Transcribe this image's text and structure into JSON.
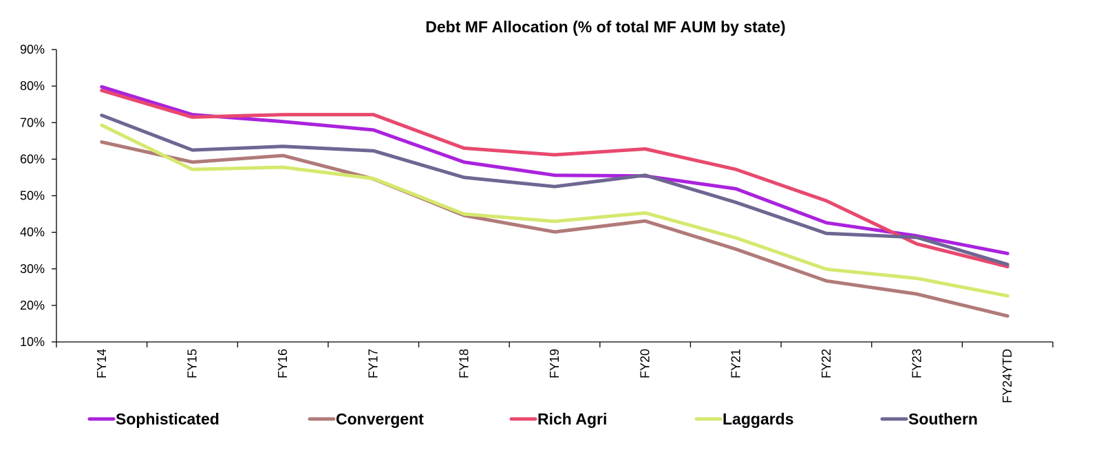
{
  "chart_data": {
    "type": "line",
    "title": "Debt MF Allocation (% of total MF AUM by state)",
    "xlabel": "",
    "ylabel": "",
    "categories": [
      "FY14",
      "FY15",
      "FY16",
      "FY17",
      "FY18",
      "FY19",
      "FY20",
      "FY21",
      "FY22",
      "FY23",
      "FY24YTD"
    ],
    "ylim": [
      10,
      90
    ],
    "yticks": [
      10,
      20,
      30,
      40,
      50,
      60,
      70,
      80,
      90
    ],
    "ytick_labels": [
      "10%",
      "20%",
      "30%",
      "40%",
      "50%",
      "60%",
      "70%",
      "80%",
      "90%"
    ],
    "grid": false,
    "legend": "bottom",
    "series": [
      {
        "name": "Sophisticated",
        "color": "#aa22dd",
        "values": [
          79.8,
          72.2,
          70.3,
          68.0,
          59.2,
          55.6,
          55.4,
          51.9,
          42.6,
          39.0,
          34.2
        ]
      },
      {
        "name": "Convergent",
        "color": "#b07a78",
        "values": [
          64.7,
          59.2,
          61.0,
          54.6,
          44.6,
          40.1,
          43.1,
          35.4,
          26.7,
          23.1,
          17.1
        ]
      },
      {
        "name": "Rich Agri",
        "color": "#e8496e",
        "values": [
          78.8,
          71.5,
          72.2,
          72.2,
          63.0,
          61.2,
          62.8,
          57.2,
          48.6,
          36.8,
          30.6
        ]
      },
      {
        "name": "Laggards",
        "color": "#d6e86e",
        "values": [
          69.3,
          57.2,
          57.8,
          54.7,
          45.0,
          43.0,
          45.3,
          38.5,
          29.9,
          27.4,
          22.6
        ]
      },
      {
        "name": "Southern",
        "color": "#6e6692",
        "values": [
          72.0,
          62.5,
          63.5,
          62.3,
          55.0,
          52.5,
          55.6,
          48.2,
          39.7,
          38.6,
          31.2
        ]
      }
    ]
  }
}
